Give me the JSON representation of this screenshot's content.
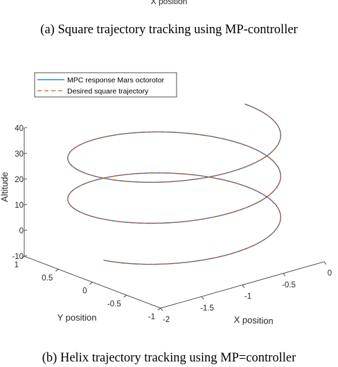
{
  "top_panel": {
    "xlabel": "X position",
    "caption": "(a) Square trajectory tracking using MP-controller"
  },
  "bottom_panel": {
    "caption": "(b) Helix trajectory tracking using MP=controller"
  },
  "chart_data": {
    "type": "line",
    "projection": "3d",
    "xlabel": "X position",
    "ylabel": "Y position",
    "zlabel": "Altitude",
    "xlim": [
      -2,
      0
    ],
    "ylim": [
      -1,
      1
    ],
    "zlim": [
      -10,
      40
    ],
    "x_ticks": [
      "-2",
      "-1.5",
      "-1",
      "-0.5",
      "0"
    ],
    "y_ticks": [
      "-1",
      "-0.5",
      "0",
      "0.5",
      "1"
    ],
    "z_ticks": [
      "-10",
      "0",
      "10",
      "20",
      "30",
      "40"
    ],
    "grid": false,
    "legend_position": "top-left",
    "helix": {
      "center_x": -1,
      "center_y": 0,
      "radius": 1,
      "z_start": 0,
      "z_end": 40,
      "turns": 2.5
    },
    "series": [
      {
        "name": "MPC response Mars octorotor",
        "color": "#0072BD",
        "style": "solid"
      },
      {
        "name": "Desired square trajectory",
        "color": "#D95319",
        "style": "dashed"
      }
    ]
  }
}
